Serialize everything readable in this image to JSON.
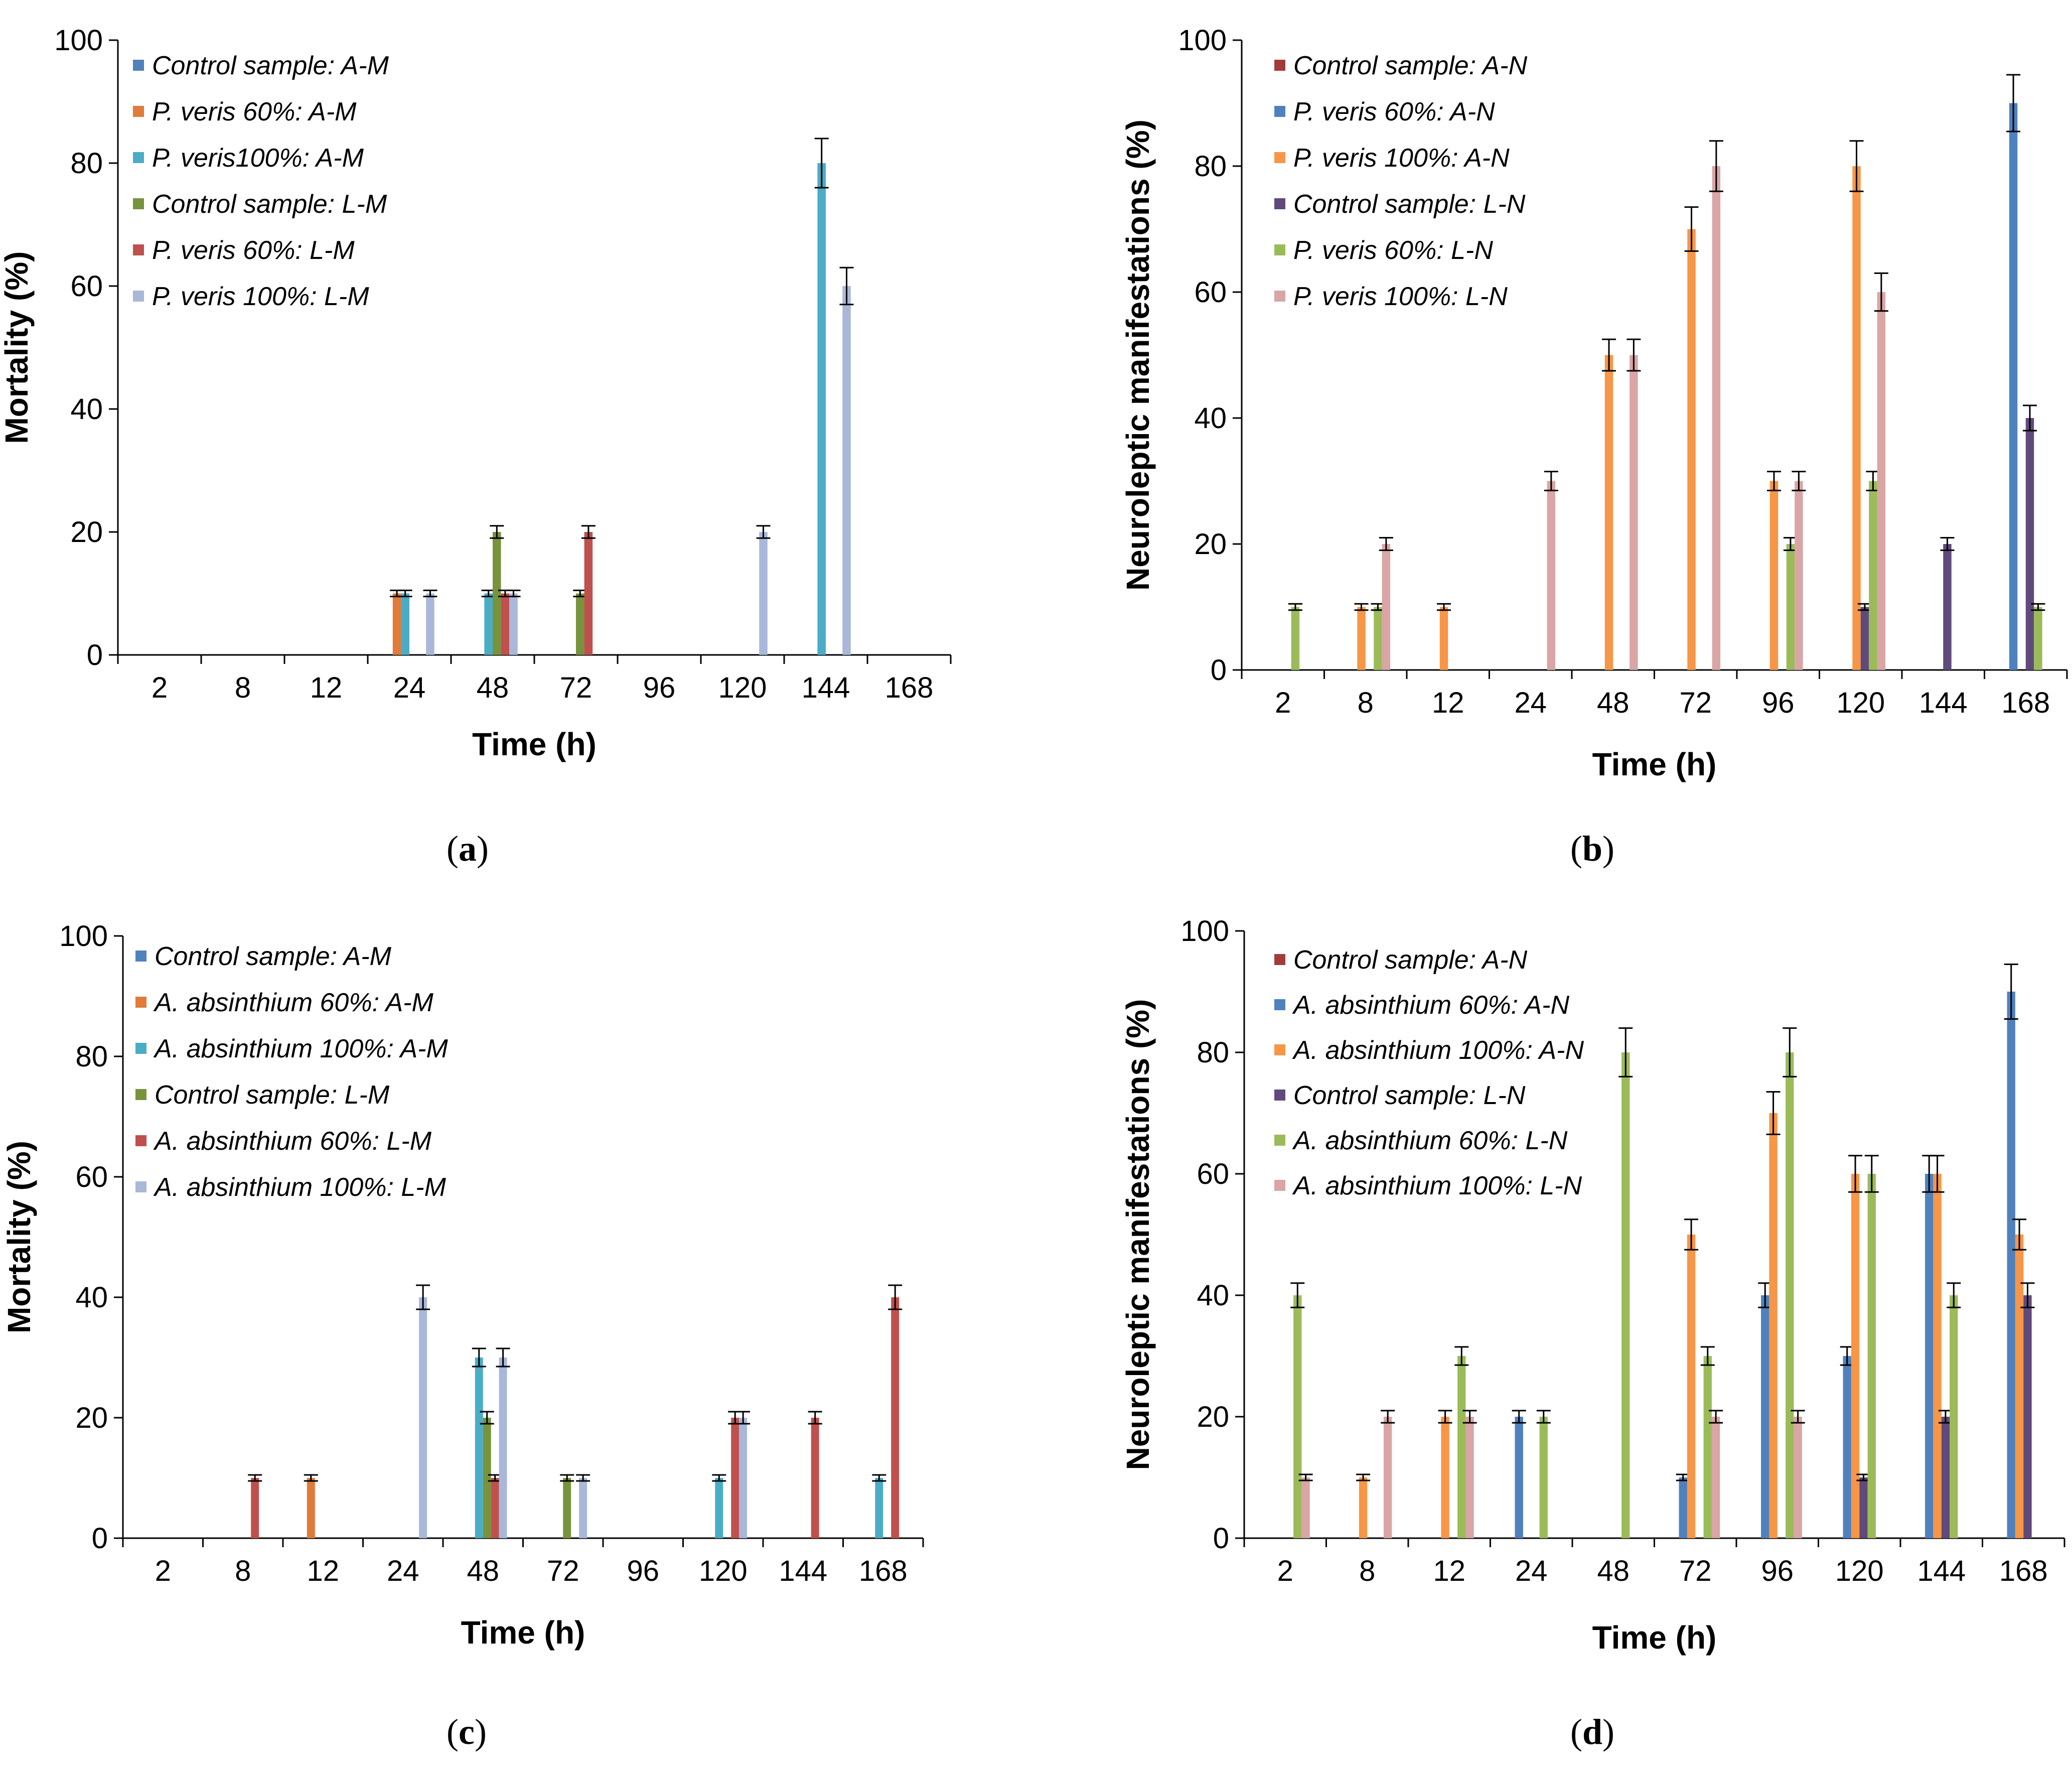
{
  "chart_data": [
    {
      "id": "a",
      "type": "bar",
      "caption": "a",
      "categories": [
        "2",
        "8",
        "12",
        "24",
        "48",
        "72",
        "96",
        "120",
        "144",
        "168"
      ],
      "xlabel": "Time (h)",
      "ylabel": "Mortality  (%)",
      "ylim": [
        0,
        100
      ],
      "yticks": [
        0,
        20,
        40,
        60,
        80,
        100
      ],
      "legend_position": "top-left",
      "series": [
        {
          "name": "Control sample: A-M",
          "color": "#4F81BD",
          "values": [
            0,
            0,
            0,
            0,
            0,
            0,
            0,
            0,
            0,
            0
          ],
          "errors": [
            0,
            0,
            0,
            0,
            0,
            0,
            0,
            0,
            0,
            0
          ]
        },
        {
          "name": "P. veris 60%: A-M",
          "color": "#E07B39",
          "values": [
            0,
            0,
            0,
            10,
            0,
            0,
            0,
            0,
            0,
            0
          ],
          "errors": [
            0,
            0,
            0,
            0.5,
            0,
            0,
            0,
            0,
            0,
            0
          ]
        },
        {
          "name": "P. veris100%: A-M",
          "color": "#4BACC6",
          "values": [
            0,
            0,
            0,
            10,
            10,
            0,
            0,
            0,
            80,
            0
          ],
          "errors": [
            0,
            0,
            0,
            0.5,
            0.5,
            0,
            0,
            0,
            4,
            0
          ]
        },
        {
          "name": "Control sample: L-M",
          "color": "#77933C",
          "values": [
            0,
            0,
            0,
            0,
            20,
            10,
            0,
            0,
            0,
            0
          ],
          "errors": [
            0,
            0,
            0,
            0,
            1,
            0.5,
            0,
            0,
            0,
            0
          ]
        },
        {
          "name": "P. veris 60%: L-M",
          "color": "#C0504D",
          "values": [
            0,
            0,
            0,
            0,
            10,
            20,
            0,
            0,
            0,
            0
          ],
          "errors": [
            0,
            0,
            0,
            0,
            0.5,
            1,
            0,
            0,
            0,
            0
          ]
        },
        {
          "name": "P. veris 100%: L-M",
          "color": "#A9B8D9",
          "values": [
            0,
            0,
            0,
            10,
            10,
            0,
            0,
            20,
            60,
            0
          ],
          "errors": [
            0,
            0,
            0,
            0.5,
            0.5,
            0,
            0,
            1,
            3,
            0
          ]
        }
      ]
    },
    {
      "id": "b",
      "type": "bar",
      "caption": "b",
      "categories": [
        "2",
        "8",
        "12",
        "24",
        "48",
        "72",
        "96",
        "120",
        "144",
        "168"
      ],
      "xlabel": "Time (h)",
      "ylabel": "Neuroleptic manifestations  (%)",
      "ylim": [
        0,
        100
      ],
      "yticks": [
        0,
        20,
        40,
        60,
        80,
        100
      ],
      "legend_position": "top-left",
      "series": [
        {
          "name": "Control sample: A-N",
          "color": "#A33B3B",
          "values": [
            0,
            0,
            0,
            0,
            0,
            0,
            0,
            0,
            0,
            0
          ],
          "errors": [
            0,
            0,
            0,
            0,
            0,
            0,
            0,
            0,
            0,
            0
          ]
        },
        {
          "name": "P. veris 60%: A-N",
          "color": "#4F81BD",
          "values": [
            0,
            0,
            0,
            0,
            0,
            0,
            0,
            0,
            0,
            90
          ],
          "errors": [
            0,
            0,
            0,
            0,
            0,
            0,
            0,
            0,
            0,
            4.5
          ]
        },
        {
          "name": "P. veris 100%: A-N",
          "color": "#F79646",
          "values": [
            0,
            10,
            10,
            0,
            50,
            70,
            30,
            80,
            0,
            0
          ],
          "errors": [
            0,
            0.5,
            0.5,
            0,
            2.5,
            3.5,
            1.5,
            4,
            0,
            0
          ]
        },
        {
          "name": "Control sample: L-N",
          "color": "#604A7B",
          "values": [
            0,
            0,
            0,
            0,
            0,
            0,
            0,
            10,
            20,
            40
          ],
          "errors": [
            0,
            0,
            0,
            0,
            0,
            0,
            0,
            0.5,
            1,
            2
          ]
        },
        {
          "name": "P. veris 60%: L-N",
          "color": "#9BBB59",
          "values": [
            10,
            10,
            0,
            0,
            0,
            0,
            20,
            30,
            0,
            10
          ],
          "errors": [
            0.5,
            0.5,
            0,
            0,
            0,
            0,
            1,
            1.5,
            0,
            0.5
          ]
        },
        {
          "name": "P. veris 100%: L-N",
          "color": "#D9A5A5",
          "values": [
            0,
            20,
            0,
            30,
            50,
            80,
            30,
            60,
            0,
            0
          ],
          "errors": [
            0,
            1,
            0,
            1.5,
            2.5,
            4,
            1.5,
            3,
            0,
            0
          ]
        }
      ]
    },
    {
      "id": "c",
      "type": "bar",
      "caption": "c",
      "categories": [
        "2",
        "8",
        "12",
        "24",
        "48",
        "72",
        "96",
        "120",
        "144",
        "168"
      ],
      "xlabel": "Time (h)",
      "ylabel": "Mortality  (%)",
      "ylim": [
        0,
        100
      ],
      "yticks": [
        0,
        20,
        40,
        60,
        80,
        100
      ],
      "legend_position": "top-left",
      "series": [
        {
          "name": "Control sample: A-M",
          "color": "#4F81BD",
          "values": [
            0,
            0,
            0,
            0,
            0,
            0,
            0,
            0,
            0,
            0
          ],
          "errors": [
            0,
            0,
            0,
            0,
            0,
            0,
            0,
            0,
            0,
            0
          ]
        },
        {
          "name": "A. absinthium 60%: A-M",
          "color": "#E07B39",
          "values": [
            0,
            0,
            10,
            0,
            0,
            0,
            0,
            0,
            0,
            0
          ],
          "errors": [
            0,
            0,
            0.5,
            0,
            0,
            0,
            0,
            0,
            0,
            0
          ]
        },
        {
          "name": "A. absinthium 100%: A-M",
          "color": "#4BACC6",
          "values": [
            0,
            0,
            0,
            0,
            30,
            0,
            0,
            10,
            0,
            10
          ],
          "errors": [
            0,
            0,
            0,
            0,
            1.5,
            0,
            0,
            0.5,
            0,
            0.5
          ]
        },
        {
          "name": "Control sample: L-M",
          "color": "#77933C",
          "values": [
            0,
            0,
            0,
            0,
            20,
            10,
            0,
            0,
            0,
            0
          ],
          "errors": [
            0,
            0,
            0,
            0,
            1,
            0.5,
            0,
            0,
            0,
            0
          ]
        },
        {
          "name": "A. absinthium 60%: L-M",
          "color": "#C0504D",
          "values": [
            0,
            10,
            0,
            0,
            10,
            0,
            0,
            20,
            20,
            40
          ],
          "errors": [
            0,
            0.5,
            0,
            0,
            0.5,
            0,
            0,
            1,
            1,
            2
          ]
        },
        {
          "name": "A. absinthium 100%: L-M",
          "color": "#A9B8D9",
          "values": [
            0,
            0,
            0,
            40,
            30,
            10,
            0,
            20,
            0,
            0
          ],
          "errors": [
            0,
            0,
            0,
            2,
            1.5,
            0.5,
            0,
            1,
            0,
            0
          ]
        }
      ]
    },
    {
      "id": "d",
      "type": "bar",
      "caption": "d",
      "categories": [
        "2",
        "8",
        "12",
        "24",
        "48",
        "72",
        "96",
        "120",
        "144",
        "168"
      ],
      "xlabel": "Time (h)",
      "ylabel": "Neuroleptic manifestations  (%)",
      "ylim": [
        0,
        100
      ],
      "yticks": [
        0,
        20,
        40,
        60,
        80,
        100
      ],
      "legend_position": "top-left",
      "series": [
        {
          "name": "Control sample: A-N",
          "color": "#A33B3B",
          "values": [
            0,
            0,
            0,
            0,
            0,
            0,
            0,
            0,
            0,
            0
          ],
          "errors": [
            0,
            0,
            0,
            0,
            0,
            0,
            0,
            0,
            0,
            0
          ]
        },
        {
          "name": "A. absinthium 60%: A-N",
          "color": "#4F81BD",
          "values": [
            0,
            0,
            0,
            20,
            0,
            10,
            40,
            30,
            60,
            90
          ],
          "errors": [
            0,
            0,
            0,
            1,
            0,
            0.5,
            2,
            1.5,
            3,
            4.5
          ]
        },
        {
          "name": "A. absinthium 100%: A-N",
          "color": "#F79646",
          "values": [
            0,
            10,
            20,
            0,
            0,
            50,
            70,
            60,
            60,
            50
          ],
          "errors": [
            0,
            0.5,
            1,
            0,
            0,
            2.5,
            3.5,
            3,
            3,
            2.5
          ]
        },
        {
          "name": "Control sample: L-N",
          "color": "#604A7B",
          "values": [
            0,
            0,
            0,
            0,
            0,
            0,
            0,
            10,
            20,
            40
          ],
          "errors": [
            0,
            0,
            0,
            0,
            0,
            0,
            0,
            0.5,
            1,
            2
          ]
        },
        {
          "name": "A. absinthium 60%: L-N",
          "color": "#9BBB59",
          "values": [
            40,
            0,
            30,
            20,
            80,
            30,
            80,
            60,
            40,
            0
          ],
          "errors": [
            2,
            0,
            1.5,
            1,
            4,
            1.5,
            4,
            3,
            2,
            0
          ]
        },
        {
          "name": "A. absinthium 100%: L-N",
          "color": "#D9A5A5",
          "values": [
            10,
            20,
            20,
            0,
            0,
            20,
            20,
            0,
            0,
            0
          ],
          "errors": [
            0.5,
            1,
            1,
            0,
            0,
            1,
            1,
            0,
            0,
            0
          ]
        }
      ]
    }
  ]
}
